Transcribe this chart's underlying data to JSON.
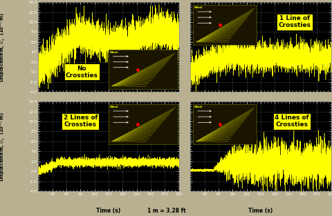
{
  "plot_bg_color": "#000000",
  "outer_bg_color": "#b8b090",
  "line_color": "#ffff00",
  "grid_color": "#404040",
  "ylabel": "Displacement, $U_x$  (10$^{-3}$ m)",
  "xlabel": "Time (s)",
  "center_label": "1 m = 3.28 ft",
  "ylim": [
    -4.0,
    14.0
  ],
  "yticks": [
    -4.0,
    -2.0,
    0.0,
    2.0,
    4.0,
    6.0,
    8.0,
    10.0,
    12.0,
    14.0
  ],
  "xticks": [
    30,
    60,
    90,
    120,
    150,
    180,
    210,
    240,
    270,
    300
  ],
  "xlim": [
    0,
    300
  ],
  "titles": [
    "No\nCrossties",
    "1 Line of\nCrossties",
    "2 Lines of\nCrossties",
    "4 Lines of\nCrossties"
  ],
  "inset_bg": "#1a1500",
  "cable_color": "#888800",
  "cable_color2": "#aaaa00",
  "wind_text_color": "#ffff00",
  "label_box_color": "#ffff00",
  "label_text_color": "#000000",
  "tick_color": "#ffffff",
  "tick_label_color": "#ffffff"
}
